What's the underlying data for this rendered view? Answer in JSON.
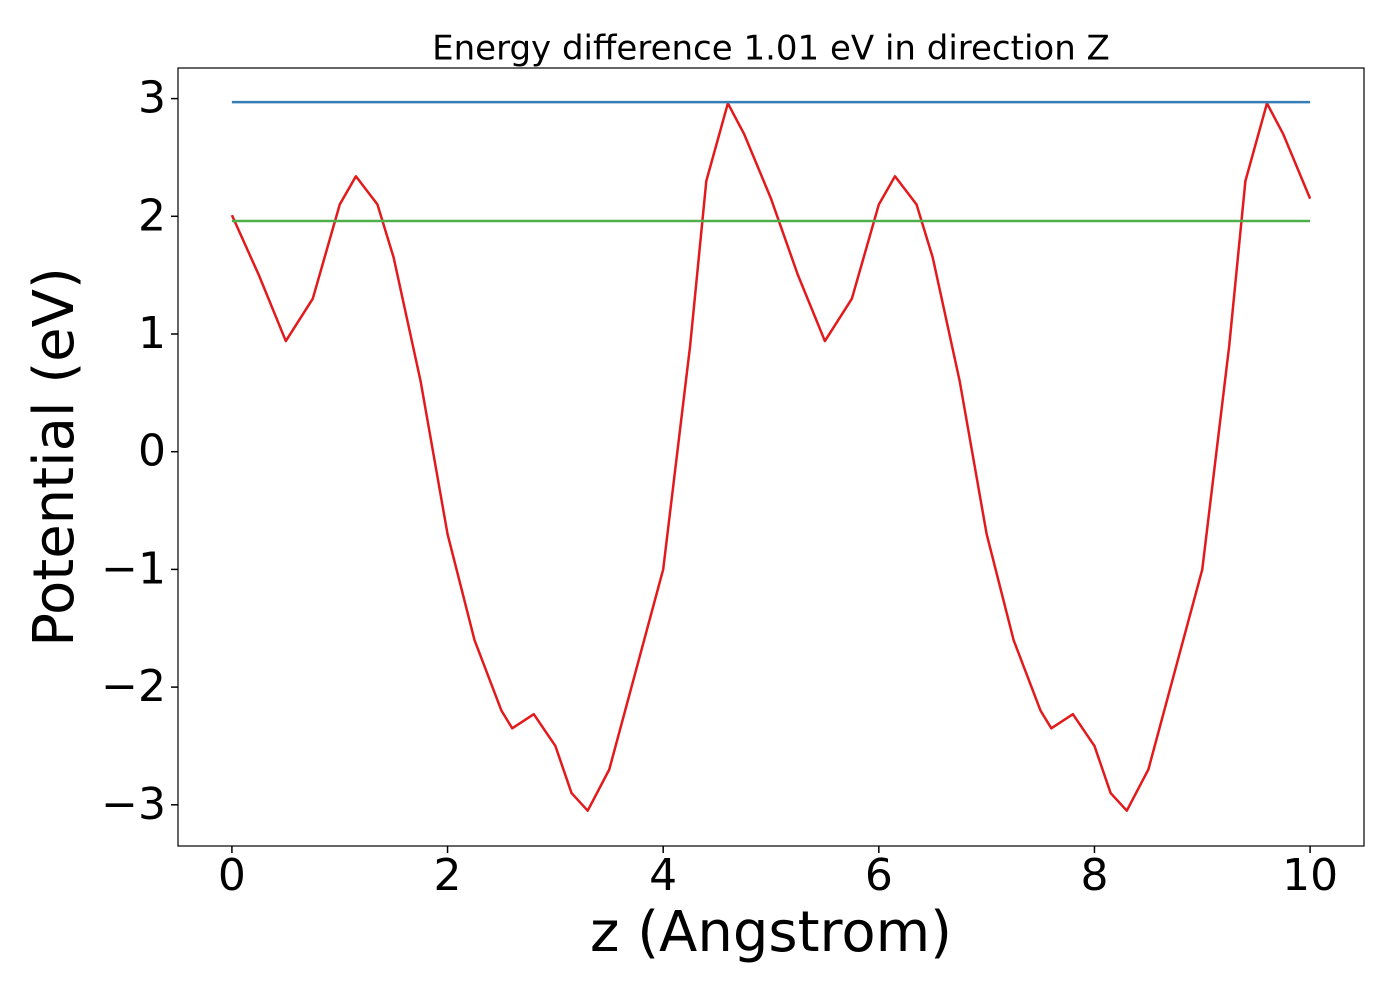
{
  "chart_data": {
    "type": "line",
    "title": "Energy difference 1.01 eV in direction Z",
    "x_label": "z (Angstrom)",
    "y_label": "Potential (eV)",
    "xlim": [
      -0.5,
      10.5
    ],
    "ylim": [
      -3.35,
      3.26
    ],
    "xticks": [
      0,
      2,
      4,
      6,
      8,
      10
    ],
    "yticks": [
      {
        "value": -3,
        "label": "−3"
      },
      {
        "value": -2,
        "label": "−2"
      },
      {
        "value": -1,
        "label": "−1"
      },
      0,
      1,
      2,
      3
    ],
    "grid": false,
    "series": [
      {
        "color": "#e31a1c",
        "x": [
          0,
          0.25,
          0.5,
          0.75,
          1.0,
          1.15,
          1.35,
          1.5,
          1.75,
          2.0,
          2.25,
          2.5,
          2.6,
          2.8,
          3.0,
          3.15,
          3.3,
          3.5,
          3.75,
          4.0,
          4.25,
          4.4,
          4.6,
          4.75,
          5.0,
          5.25,
          5.5,
          5.75,
          6.0,
          6.15,
          6.35,
          6.5,
          6.75,
          7.0,
          7.25,
          7.5,
          7.6,
          7.8,
          8.0,
          8.15,
          8.3,
          8.5,
          8.75,
          9.0,
          9.25,
          9.4,
          9.6,
          9.75,
          10.0
        ],
        "values": [
          2.01,
          1.5,
          0.94,
          1.3,
          2.1,
          2.34,
          2.1,
          1.65,
          0.6,
          -0.7,
          -1.6,
          -2.2,
          -2.35,
          -2.23,
          -2.5,
          -2.9,
          -3.05,
          -2.7,
          -1.85,
          -1.0,
          0.9,
          2.3,
          2.96,
          2.7,
          2.15,
          1.5,
          0.94,
          1.3,
          2.1,
          2.34,
          2.1,
          1.65,
          0.6,
          -0.7,
          -1.6,
          -2.2,
          -2.35,
          -2.23,
          -2.5,
          -2.9,
          -3.05,
          -2.7,
          -1.85,
          -1.0,
          0.9,
          2.3,
          2.96,
          2.7,
          2.15
        ]
      },
      {
        "color": "#377eb8",
        "x": [
          0,
          10
        ],
        "values": [
          2.97,
          2.97
        ]
      },
      {
        "color": "#4daf4a",
        "x": [
          0,
          10
        ],
        "values": [
          1.96,
          1.96
        ]
      }
    ]
  }
}
